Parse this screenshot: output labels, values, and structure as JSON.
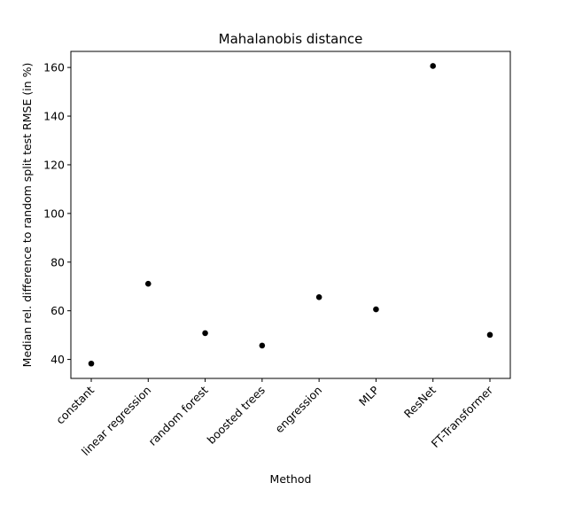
{
  "chart_data": {
    "type": "scatter",
    "title": "Mahalanobis distance",
    "xlabel": "Method",
    "ylabel": "Median rel. difference to random split test RMSE (in %)",
    "categories": [
      "constant",
      "linear regression",
      "random forest",
      "boosted trees",
      "engression",
      "MLP",
      "ResNet",
      "FT-Transformer"
    ],
    "values": [
      38.3,
      71.1,
      50.8,
      45.7,
      65.6,
      60.6,
      160.6,
      50.1
    ],
    "ylim": [
      32.2,
      166.6
    ],
    "yticks": [
      40,
      60,
      80,
      100,
      120,
      140,
      160
    ],
    "grid": false,
    "marker_color": "#000000"
  }
}
